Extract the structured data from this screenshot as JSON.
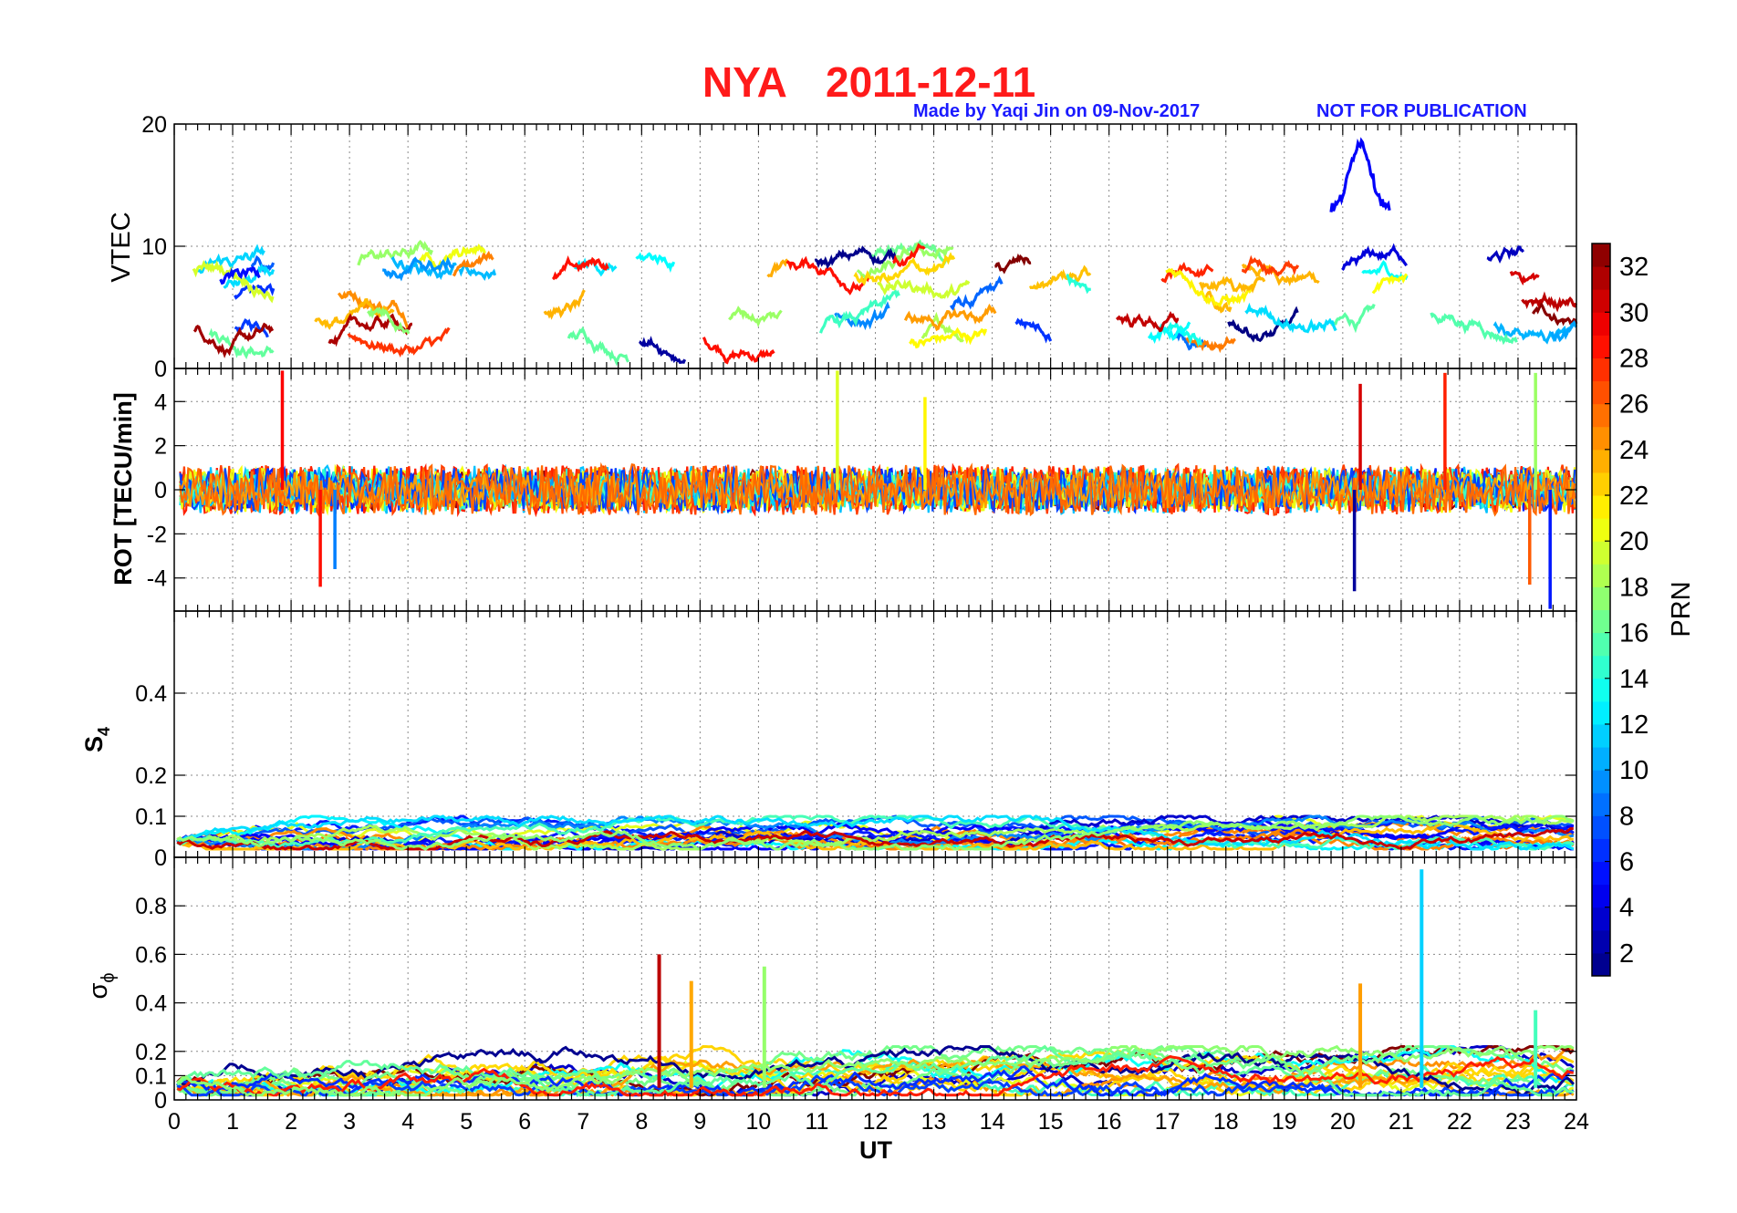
{
  "figure": {
    "title_station": "NYA",
    "title_date": "2011-12-11",
    "credit": "Made by Yaqi Jin on 09-Nov-2017",
    "notice": "NOT FOR PUBLICATION",
    "title_color": "#ff1a1a",
    "credit_color": "#1a1aff"
  },
  "chart_data": [
    {
      "type": "line",
      "panel": "vtec",
      "ylabel": "VTEC",
      "ylim": [
        0,
        20
      ],
      "yticks": [
        0,
        10,
        20
      ],
      "xlim": [
        0,
        24
      ],
      "grid": true,
      "data_windows": [
        [
          0.3,
          1.7
        ],
        [
          2.0,
          5.5
        ],
        [
          5.8,
          10.5
        ],
        [
          10.4,
          15.7
        ],
        [
          15.9,
          21.1
        ],
        [
          21.5,
          24.0
        ]
      ],
      "typical_range": [
        1,
        10
      ],
      "peak": {
        "x": 20.3,
        "y": 18.5
      }
    },
    {
      "type": "line",
      "panel": "rot",
      "ylabel": "ROT [TECU/min]",
      "ylim": [
        -5.5,
        5.5
      ],
      "yticks": [
        -4,
        -2,
        0,
        2,
        4
      ],
      "xlim": [
        0,
        24
      ],
      "grid": true,
      "baseline_amplitude": 1.0,
      "spikes": [
        {
          "x": 1.85,
          "y": 5.4
        },
        {
          "x": 2.5,
          "y": -4.4
        },
        {
          "x": 2.75,
          "y": -3.6
        },
        {
          "x": 11.35,
          "y": 5.4
        },
        {
          "x": 12.85,
          "y": 4.2
        },
        {
          "x": 20.2,
          "y": -4.6
        },
        {
          "x": 20.3,
          "y": 4.8
        },
        {
          "x": 21.75,
          "y": 5.3
        },
        {
          "x": 23.3,
          "y": 5.3
        },
        {
          "x": 23.2,
          "y": -4.3
        },
        {
          "x": 23.55,
          "y": -5.4
        }
      ]
    },
    {
      "type": "line",
      "panel": "s4",
      "ylabel": "S4",
      "ylim": [
        0,
        0.6
      ],
      "yticks": [
        0,
        0.1,
        0.2,
        0.4
      ],
      "ytick_labels": [
        "0",
        "0.1",
        "0.2",
        "0.4"
      ],
      "xlim": [
        0,
        24
      ],
      "grid": true,
      "typical_range": [
        0.02,
        0.1
      ]
    },
    {
      "type": "line",
      "panel": "sigma_phi",
      "ylabel": "σϕ",
      "ylim": [
        0,
        1
      ],
      "yticks": [
        0,
        0.1,
        0.2,
        0.4,
        0.6,
        0.8
      ],
      "ytick_labels": [
        "0",
        "0.1",
        "0.2",
        "0.4",
        "0.6",
        "0.8"
      ],
      "xlim": [
        0,
        24
      ],
      "xticks": [
        0,
        1,
        2,
        3,
        4,
        5,
        6,
        7,
        8,
        9,
        10,
        11,
        12,
        13,
        14,
        15,
        16,
        17,
        18,
        19,
        20,
        21,
        22,
        23,
        24
      ],
      "xlabel": "UT",
      "grid": true,
      "spikes": [
        {
          "x": 8.3,
          "y": 0.6
        },
        {
          "x": 8.85,
          "y": 0.49
        },
        {
          "x": 10.1,
          "y": 0.55
        },
        {
          "x": 20.3,
          "y": 0.48
        },
        {
          "x": 21.35,
          "y": 0.95
        },
        {
          "x": 23.3,
          "y": 0.37
        }
      ]
    }
  ],
  "colorbar": {
    "label": "PRN",
    "range": [
      1,
      33
    ],
    "ticks": [
      2,
      4,
      6,
      8,
      10,
      12,
      14,
      16,
      18,
      20,
      22,
      24,
      26,
      28,
      30,
      32
    ],
    "colormap": "jet"
  }
}
